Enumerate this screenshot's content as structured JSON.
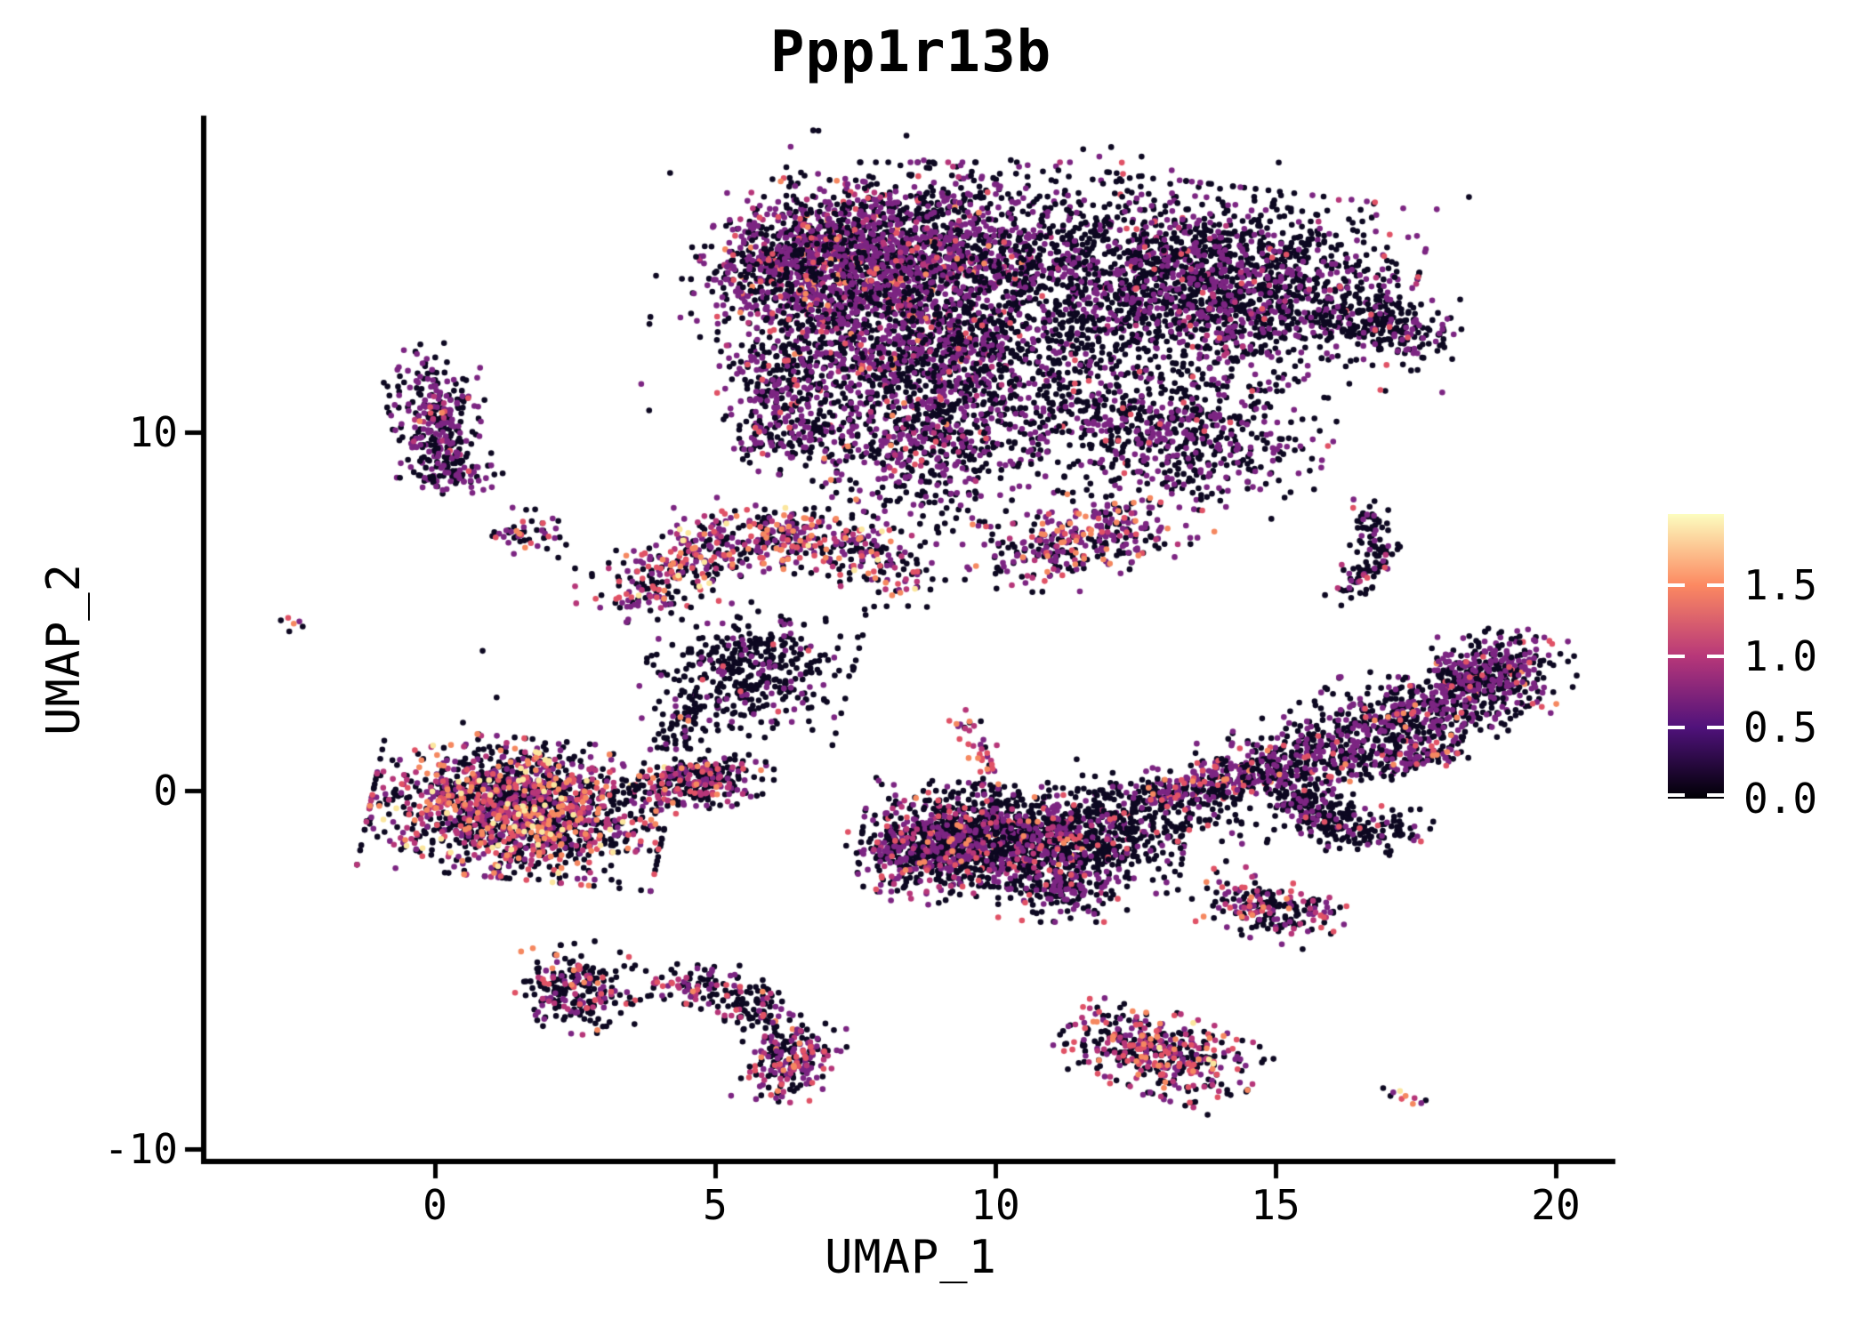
{
  "title": "Ppp1r13b",
  "axes": {
    "x_label": "UMAP_1",
    "y_label": "UMAP_2",
    "x_tick_labels": [
      "0",
      "5",
      "10",
      "15",
      "20"
    ],
    "y_tick_labels": [
      "10",
      "0",
      "-10"
    ]
  },
  "legend": {
    "tick_labels": [
      "1.5",
      "1.0",
      "0.5",
      "0.0"
    ]
  },
  "chart_data": {
    "type": "scatter",
    "title": "Ppp1r13b",
    "xlabel": "UMAP_1",
    "ylabel": "UMAP_2",
    "xlim": [
      -4.1,
      21.1
    ],
    "ylim": [
      -10.3,
      18.8
    ],
    "x_ticks": [
      0,
      5,
      10,
      15,
      20
    ],
    "y_ticks": [
      10,
      0,
      -10
    ],
    "grid": false,
    "legend_position": "right",
    "point_radius": 3.3,
    "seed": 42,
    "color_scale": {
      "name": "magma",
      "min": 0,
      "max": 2,
      "legend_ticks": [
        1.5,
        1.0,
        0.5,
        0.0
      ],
      "stops": [
        "#000004",
        "#50127b",
        "#b73779",
        "#fc8961",
        "#fcfdbf"
      ]
    },
    "palette": {
      "black": "#0d0821",
      "purple": "#7c2582",
      "magenta": "#b63679",
      "pink": "#e05266",
      "orange": "#f58860",
      "cream": "#fbe69e"
    },
    "expression_of_palette": {
      "black": 0.0,
      "purple": 0.5,
      "magenta": 1.0,
      "pink": 1.2,
      "orange": 1.5,
      "cream": 1.9
    },
    "clusters": [
      {
        "id": "top-left-lobe",
        "type": "gauss",
        "cx": 6.8,
        "cy": 14.6,
        "sx": 0.9,
        "sy": 1.1,
        "rot": -15,
        "n": 900,
        "mix": {
          "black": 0.42,
          "purple": 0.45,
          "magenta": 0.05,
          "pink": 0.05,
          "orange": 0.03
        }
      },
      {
        "id": "top-left-arm",
        "type": "band",
        "x1": 5.35,
        "y1": 14.2,
        "x2": 6.9,
        "y2": 15.4,
        "w": 0.45,
        "n": 220,
        "mix": {
          "black": 0.5,
          "purple": 0.44,
          "pink": 0.06
        }
      },
      {
        "id": "top-mid-lobe",
        "type": "gauss",
        "cx": 8.8,
        "cy": 15.0,
        "sx": 1.1,
        "sy": 1.1,
        "rot": 0,
        "n": 1150,
        "mix": {
          "black": 0.5,
          "purple": 0.42,
          "magenta": 0.04,
          "pink": 0.03,
          "orange": 0.01
        }
      },
      {
        "id": "top-mid-lower",
        "type": "gauss",
        "cx": 8.6,
        "cy": 12.3,
        "sx": 1.2,
        "sy": 1.0,
        "rot": 0,
        "n": 800,
        "mix": {
          "black": 0.52,
          "purple": 0.4,
          "magenta": 0.04,
          "pink": 0.03,
          "orange": 0.01
        }
      },
      {
        "id": "top-left-shelf",
        "type": "gauss",
        "cx": 6.3,
        "cy": 11.5,
        "sx": 0.55,
        "sy": 0.75,
        "rot": 0,
        "n": 260,
        "mix": {
          "black": 0.55,
          "purple": 0.4,
          "pink": 0.05
        }
      },
      {
        "id": "top-left-shelf2",
        "type": "gauss",
        "cx": 6.3,
        "cy": 9.9,
        "sx": 0.5,
        "sy": 0.55,
        "rot": 0,
        "n": 140,
        "mix": {
          "black": 0.6,
          "purple": 0.36,
          "pink": 0.04
        }
      },
      {
        "id": "top-right-lobe",
        "type": "gauss",
        "cx": 14.0,
        "cy": 14.1,
        "sx": 1.5,
        "sy": 1.2,
        "rot": -10,
        "n": 1750,
        "mix": {
          "black": 0.7,
          "purple": 0.26,
          "magenta": 0.02,
          "pink": 0.02
        }
      },
      {
        "id": "top-right-tip",
        "type": "band",
        "x1": 16.3,
        "y1": 13.5,
        "x2": 17.65,
        "y2": 12.6,
        "w": 0.4,
        "n": 200,
        "mix": {
          "black": 0.75,
          "purple": 0.23,
          "pink": 0.02
        }
      },
      {
        "id": "top-valley-upper",
        "type": "gauss",
        "cx": 11.2,
        "cy": 14.7,
        "sx": 1.1,
        "sy": 1.3,
        "rot": 0,
        "n": 380,
        "mix": {
          "black": 0.72,
          "purple": 0.26,
          "pink": 0.02
        }
      },
      {
        "id": "top-valley-lower",
        "type": "gauss",
        "cx": 10.3,
        "cy": 11.3,
        "sx": 1.4,
        "sy": 1.3,
        "rot": 0,
        "n": 450,
        "mix": {
          "black": 0.7,
          "purple": 0.27,
          "pink": 0.03
        }
      },
      {
        "id": "top-right-shelf",
        "type": "gauss",
        "cx": 13.3,
        "cy": 9.9,
        "sx": 1.15,
        "sy": 0.85,
        "rot": -12,
        "n": 560,
        "mix": {
          "black": 0.62,
          "purple": 0.34,
          "pink": 0.04
        }
      },
      {
        "id": "top-lower-spur",
        "type": "gauss",
        "cx": 8.7,
        "cy": 9.6,
        "sx": 0.85,
        "sy": 1.05,
        "rot": 10,
        "n": 480,
        "mix": {
          "black": 0.5,
          "purple": 0.42,
          "magenta": 0.04,
          "pink": 0.03,
          "orange": 0.01
        }
      },
      {
        "id": "spur-tip",
        "type": "gauss",
        "cx": 7.15,
        "cy": 8.8,
        "sx": 0.3,
        "sy": 0.35,
        "rot": 0,
        "n": 16,
        "mix": {
          "black": 0.45,
          "purple": 0.25,
          "orange": 0.3
        }
      },
      {
        "id": "high-band",
        "type": "band",
        "x1": 10.25,
        "y1": 6.45,
        "x2": 12.8,
        "y2": 7.5,
        "w": 0.5,
        "n": 330,
        "mix": {
          "black": 0.37,
          "purple": 0.41,
          "magenta": 0.06,
          "pink": 0.06,
          "orange": 0.1
        }
      },
      {
        "id": "left-column",
        "type": "gauss",
        "cx": 0.05,
        "cy": 10.4,
        "sx": 0.38,
        "sy": 0.9,
        "rot": 5,
        "n": 270,
        "mix": {
          "black": 0.52,
          "purple": 0.41,
          "magenta": 0.03,
          "pink": 0.03,
          "orange": 0.01
        }
      },
      {
        "id": "left-column-foot",
        "type": "gauss",
        "cx": 0.3,
        "cy": 9.0,
        "sx": 0.4,
        "sy": 0.32,
        "rot": -10,
        "n": 90,
        "mix": {
          "black": 0.62,
          "purple": 0.36,
          "pink": 0.02
        }
      },
      {
        "id": "blob-17-73",
        "type": "gauss",
        "cx": 1.65,
        "cy": 7.25,
        "sx": 0.3,
        "sy": 0.28,
        "rot": 0,
        "n": 48,
        "mix": {
          "black": 0.52,
          "purple": 0.32,
          "pink": 0.08,
          "orange": 0.08
        }
      },
      {
        "id": "blob-trail",
        "type": "points",
        "pts": [
          [
            2.0,
            6.75
          ],
          [
            2.2,
            6.5
          ],
          [
            2.5,
            6.2
          ],
          [
            2.8,
            6.05
          ],
          [
            3.1,
            6.35
          ]
        ],
        "mix": {
          "black": 1
        }
      },
      {
        "id": "tiny-left",
        "type": "points",
        "pts": [
          [
            -2.75,
            4.75
          ],
          [
            -2.62,
            4.82
          ],
          [
            -2.52,
            4.66
          ],
          [
            -2.36,
            4.58
          ],
          [
            -2.6,
            4.44
          ],
          [
            -2.42,
            4.72
          ]
        ],
        "colors": [
          "black",
          "pink",
          "orange",
          "black",
          "black",
          "purple"
        ]
      },
      {
        "id": "crescent-arc",
        "type": "arc",
        "x1": 3.5,
        "y1": 5.2,
        "qx": 5.6,
        "qy": 8.7,
        "x2": 8.5,
        "y2": 5.9,
        "w": 0.45,
        "n": 640,
        "mix": {
          "black": 0.4,
          "purple": 0.27,
          "magenta": 0.11,
          "pink": 0.12,
          "orange": 0.08,
          "cream": 0.02
        }
      },
      {
        "id": "crescent-belly",
        "type": "gauss",
        "cx": 5.6,
        "cy": 3.4,
        "sx": 0.8,
        "sy": 0.8,
        "rot": -10,
        "n": 400,
        "mix": {
          "black": 0.85,
          "purple": 0.13,
          "pink": 0.02
        }
      },
      {
        "id": "crescent-tail",
        "type": "band",
        "x1": 4.65,
        "y1": 2.6,
        "x2": 4.3,
        "y2": 1.25,
        "w": 0.25,
        "n": 70,
        "mix": {
          "black": 0.9,
          "purple": 0.1
        }
      },
      {
        "id": "tail-orange",
        "type": "points",
        "pts": [
          [
            4.38,
            2.05
          ],
          [
            4.52,
            1.95
          ]
        ],
        "colors": [
          "orange",
          "orange"
        ]
      },
      {
        "id": "left-main",
        "type": "gauss",
        "cx": 1.5,
        "cy": -0.5,
        "sx": 1.15,
        "sy": 0.85,
        "rot": -8,
        "n": 1650,
        "mix": {
          "black": 0.5,
          "purple": 0.16,
          "magenta": 0.14,
          "pink": 0.09,
          "orange": 0.08,
          "cream": 0.03
        }
      },
      {
        "id": "left-main-tail",
        "type": "band",
        "x1": 3.9,
        "y1": 0.05,
        "x2": 5.35,
        "y2": 0.45,
        "w": 0.35,
        "n": 280,
        "mix": {
          "black": 0.6,
          "purple": 0.14,
          "magenta": 0.12,
          "pink": 0.08,
          "orange": 0.06
        }
      },
      {
        "id": "left-main-strays",
        "type": "points",
        "pts": [
          [
            0.85,
            3.9
          ],
          [
            1.1,
            2.6
          ],
          [
            0.5,
            1.9
          ],
          [
            5.6,
            1.0
          ],
          [
            5.9,
            0.8
          ]
        ],
        "mix": {
          "black": 1
        }
      },
      {
        "id": "bl-blob",
        "type": "gauss",
        "cx": 2.5,
        "cy": -5.55,
        "sx": 0.48,
        "sy": 0.55,
        "rot": 10,
        "n": 230,
        "mix": {
          "black": 0.55,
          "purple": 0.18,
          "magenta": 0.12,
          "pink": 0.1,
          "orange": 0.05
        }
      },
      {
        "id": "bl-bridge",
        "type": "points",
        "pts": [
          [
            3.3,
            -5.7
          ],
          [
            3.5,
            -5.95
          ],
          [
            4.2,
            -5.7
          ],
          [
            4.45,
            -5.95
          ],
          [
            4.6,
            -5.75
          ],
          [
            3.9,
            -5.5
          ]
        ],
        "mix": {
          "black": 1
        }
      },
      {
        "id": "bl-arc",
        "type": "arc",
        "x1": 3.85,
        "y1": -5.35,
        "qx": 6.2,
        "qy": -5.4,
        "x2": 6.3,
        "y2": -7.6,
        "w": 0.3,
        "n": 240,
        "mix": {
          "black": 0.62,
          "purple": 0.2,
          "magenta": 0.1,
          "pink": 0.06,
          "orange": 0.02
        }
      },
      {
        "id": "bl-arc-end",
        "type": "gauss",
        "cx": 6.4,
        "cy": -7.6,
        "sx": 0.32,
        "sy": 0.55,
        "rot": -20,
        "n": 150,
        "mix": {
          "black": 0.36,
          "purple": 0.38,
          "magenta": 0.14,
          "pink": 0.09,
          "orange": 0.03
        }
      },
      {
        "id": "whale-core",
        "type": "gauss",
        "cx": 10.5,
        "cy": -1.3,
        "sx": 1.25,
        "sy": 0.62,
        "rot": -5,
        "n": 1250,
        "mix": {
          "black": 0.74,
          "purple": 0.18,
          "magenta": 0.04,
          "pink": 0.03,
          "orange": 0.01
        }
      },
      {
        "id": "whale-left",
        "type": "gauss",
        "cx": 9.0,
        "cy": -1.7,
        "sx": 0.68,
        "sy": 0.6,
        "rot": 15,
        "n": 470,
        "mix": {
          "black": 0.52,
          "purple": 0.3,
          "magenta": 0.1,
          "pink": 0.05,
          "orange": 0.03
        }
      },
      {
        "id": "whale-bottom",
        "type": "gauss",
        "cx": 11.2,
        "cy": -2.7,
        "sx": 0.5,
        "sy": 0.42,
        "rot": 0,
        "n": 190,
        "mix": {
          "black": 0.56,
          "purple": 0.39,
          "pink": 0.05
        }
      },
      {
        "id": "whale-antenna",
        "type": "band",
        "x1": 9.9,
        "y1": 0.35,
        "x2": 9.5,
        "y2": 1.95,
        "w": 0.16,
        "n": 38,
        "mix": {
          "black": 0.3,
          "purple": 0.15,
          "magenta": 0.2,
          "pink": 0.25,
          "orange": 0.1
        }
      },
      {
        "id": "whale-bridge",
        "type": "gauss",
        "cx": 12.9,
        "cy": -0.55,
        "sx": 0.9,
        "sy": 0.5,
        "rot": -10,
        "n": 230,
        "mix": {
          "black": 0.82,
          "purple": 0.13,
          "pink": 0.05
        }
      },
      {
        "id": "right-left-arm",
        "type": "band",
        "x1": 12.9,
        "y1": 0.0,
        "x2": 14.9,
        "y2": 0.6,
        "w": 0.28,
        "n": 210,
        "mix": {
          "black": 0.45,
          "purple": 0.4,
          "pink": 0.08,
          "orange": 0.07
        }
      },
      {
        "id": "right-main",
        "type": "band",
        "x1": 14.7,
        "y1": 0.3,
        "x2": 19.3,
        "y2": 3.3,
        "w": 0.55,
        "n": 950,
        "mix": {
          "black": 0.62,
          "purple": 0.32,
          "pink": 0.04,
          "orange": 0.02
        }
      },
      {
        "id": "right-top",
        "type": "gauss",
        "cx": 18.8,
        "cy": 3.3,
        "sx": 0.6,
        "sy": 0.5,
        "rot": 30,
        "n": 210,
        "mix": {
          "black": 0.52,
          "purple": 0.42,
          "pink": 0.06
        }
      },
      {
        "id": "right-lower-arm",
        "type": "arc",
        "x1": 15.3,
        "y1": 0.2,
        "qx": 15.6,
        "qy": -1.4,
        "x2": 17.4,
        "y2": -1.05,
        "w": 0.3,
        "n": 280,
        "mix": {
          "black": 0.78,
          "purple": 0.18,
          "pink": 0.04
        }
      },
      {
        "id": "right-spur",
        "type": "band",
        "x1": 16.9,
        "y1": 0.7,
        "x2": 18.2,
        "y2": 1.25,
        "w": 0.22,
        "n": 110,
        "mix": {
          "black": 0.52,
          "purple": 0.38,
          "pink": 0.05,
          "orange": 0.05
        }
      },
      {
        "id": "sub-blob",
        "type": "gauss",
        "cx": 14.9,
        "cy": -3.3,
        "sx": 0.6,
        "sy": 0.38,
        "rot": -25,
        "n": 200,
        "mix": {
          "black": 0.5,
          "purple": 0.22,
          "magenta": 0.12,
          "pink": 0.1,
          "orange": 0.06
        }
      },
      {
        "id": "snake",
        "type": "arc",
        "x1": 16.55,
        "y1": 7.85,
        "qx": 17.15,
        "qy": 6.6,
        "x2": 16.25,
        "y2": 5.45,
        "w": 0.2,
        "n": 120,
        "mix": {
          "black": 0.72,
          "purple": 0.2,
          "magenta": 0.05,
          "pink": 0.03
        }
      },
      {
        "id": "bottom-ellipse",
        "type": "gauss",
        "cx": 12.95,
        "cy": -7.35,
        "sx": 0.8,
        "sy": 0.5,
        "rot": -28,
        "n": 430,
        "mix": {
          "black": 0.46,
          "purple": 0.15,
          "magenta": 0.18,
          "pink": 0.13,
          "orange": 0.07,
          "cream": 0.01
        }
      },
      {
        "id": "tiny-bright",
        "type": "points",
        "pts": [
          [
            16.92,
            -8.3
          ],
          [
            17.1,
            -8.42
          ],
          [
            17.22,
            -8.38
          ],
          [
            17.32,
            -8.52
          ],
          [
            17.48,
            -8.58
          ],
          [
            17.6,
            -8.72
          ],
          [
            17.45,
            -8.74
          ],
          [
            17.25,
            -8.6
          ],
          [
            17.05,
            -8.52
          ],
          [
            17.68,
            -8.64
          ]
        ],
        "colors": [
          "black",
          "purple",
          "cream",
          "orange",
          "magenta",
          "purple",
          "orange",
          "pink",
          "black",
          "black"
        ]
      },
      {
        "id": "top-sprinkle",
        "type": "gauss",
        "cx": 11.0,
        "cy": 13.2,
        "sx": 3.1,
        "sy": 2.1,
        "rot": -5,
        "n": 260,
        "mix": {
          "black": 0.74,
          "purple": 0.26
        }
      }
    ]
  }
}
